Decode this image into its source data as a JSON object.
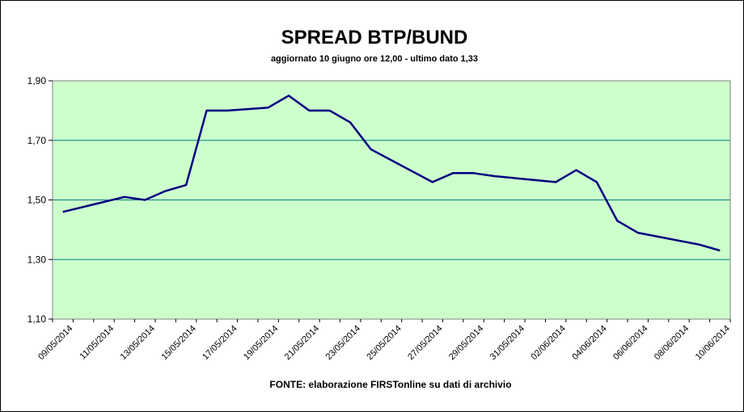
{
  "chart_data": {
    "type": "line",
    "title": "SPREAD BTP/BUND",
    "subtitle": "aggiornato 10 giugno ore 12,00 - ultimo dato 1,33",
    "source": "FONTE:  elaborazione FIRSTonline su dati di archivio",
    "xlabel": "",
    "ylabel": "",
    "ylim": [
      1.1,
      1.9
    ],
    "yticks": [
      1.1,
      1.3,
      1.5,
      1.7,
      1.9
    ],
    "ytick_labels": [
      "1,10",
      "1,30",
      "1,50",
      "1,70",
      "1,90"
    ],
    "xtick_labels": [
      "09/05/2014",
      "11/05/2014",
      "13/05/2014",
      "15/05/2014",
      "17/05/2014",
      "19/05/2014",
      "21/05/2014",
      "23/05/2014",
      "25/05/2014",
      "27/05/2014",
      "29/05/2014",
      "31/05/2014",
      "02/06/2014",
      "04/06/2014",
      "06/06/2014",
      "08/06/2014",
      "10/06/2014"
    ],
    "xlim": [
      "2014-05-09",
      "2014-06-10"
    ],
    "grid": true,
    "plot_background": "#ccffcc",
    "gridline_color": "#008080",
    "line_color": "#000080",
    "series": [
      {
        "x": [
          "2014-05-09",
          "2014-05-12",
          "2014-05-13",
          "2014-05-14",
          "2014-05-15",
          "2014-05-16",
          "2014-05-17",
          "2014-05-19",
          "2014-05-20",
          "2014-05-21",
          "2014-05-22",
          "2014-05-23",
          "2014-05-24",
          "2014-05-27",
          "2014-05-28",
          "2014-05-29",
          "2014-05-30",
          "2014-06-02",
          "2014-06-03",
          "2014-06-04",
          "2014-06-05",
          "2014-06-06",
          "2014-06-09",
          "2014-06-10"
        ],
        "values": [
          1.46,
          1.51,
          1.5,
          1.53,
          1.55,
          1.8,
          1.8,
          1.81,
          1.85,
          1.8,
          1.8,
          1.76,
          1.67,
          1.56,
          1.59,
          1.59,
          1.58,
          1.56,
          1.6,
          1.56,
          1.43,
          1.39,
          1.35,
          1.33
        ]
      }
    ]
  }
}
